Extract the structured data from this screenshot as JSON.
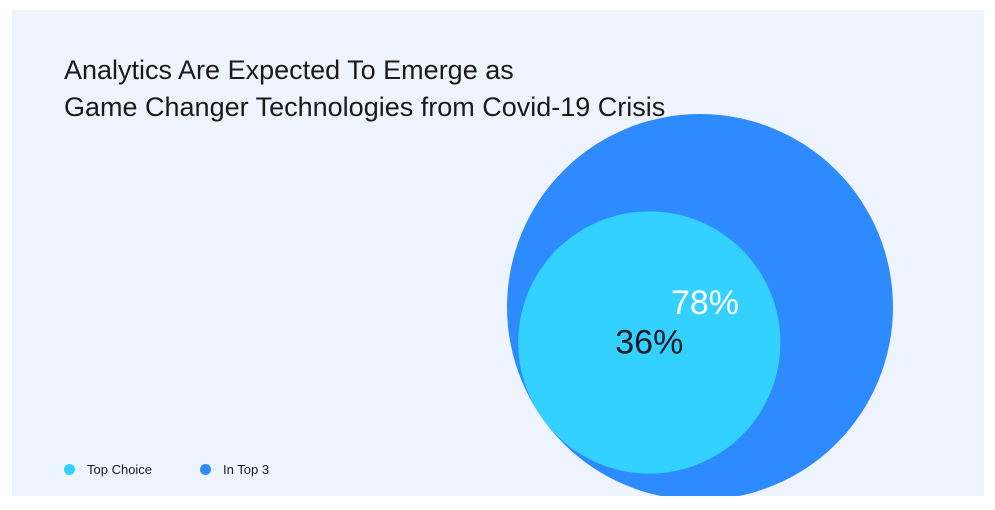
{
  "colors": {
    "background": "#eef4fd",
    "top_choice": "#33d1ff",
    "in_top_3": "#2e8bff"
  },
  "chart_data": {
    "type": "bubble",
    "title_lines": [
      "Analytics Are Expected To Emerge as",
      "Game Changer Technologies from Covid-19 Crisis"
    ],
    "series": [
      {
        "name": "In Top 3",
        "value": 78,
        "label": "78%",
        "color": "#2e8bff"
      },
      {
        "name": "Top Choice",
        "value": 36,
        "label": "36%",
        "color": "#33d1ff"
      }
    ],
    "legend_position": "bottom-left"
  }
}
